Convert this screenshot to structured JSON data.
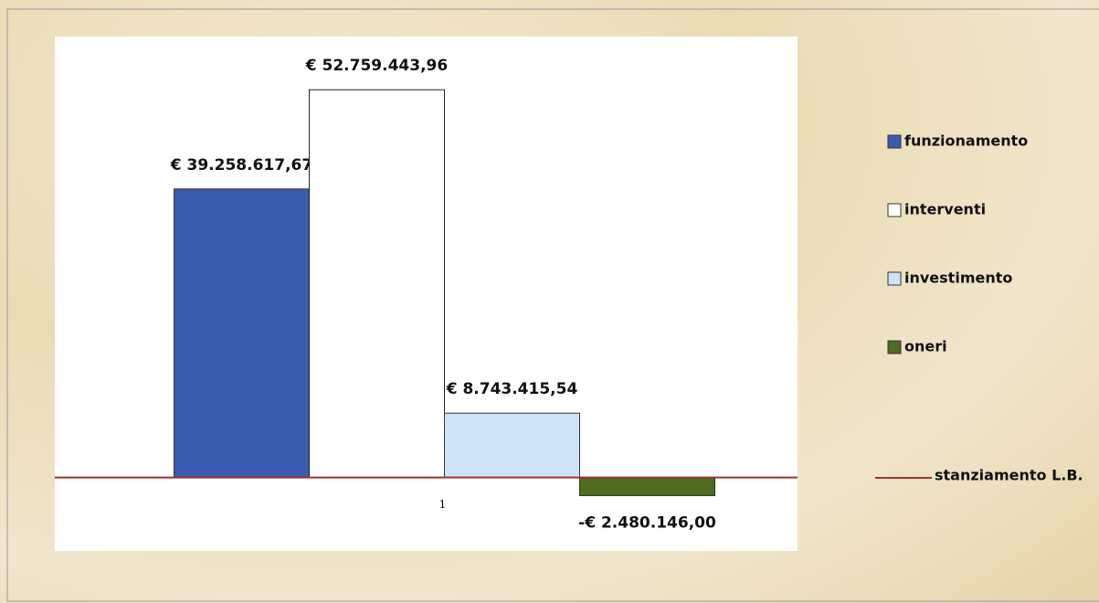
{
  "chart_data": {
    "type": "bar",
    "categories": [
      "1"
    ],
    "series": [
      {
        "name": "funzionamento",
        "color": "#3a5bb0",
        "values": [
          39258617.67
        ],
        "value_labels": [
          "€ 39.258.617,67"
        ]
      },
      {
        "name": "interventi",
        "color": "#ffffff",
        "values": [
          52759443.96
        ],
        "value_labels": [
          "€ 52.759.443,96"
        ]
      },
      {
        "name": "investimento",
        "color": "#cfe3f7",
        "values": [
          8743415.54
        ],
        "value_labels": [
          "€ 8.743.415,54"
        ]
      },
      {
        "name": "oneri",
        "color": "#4e6b1f",
        "values": [
          -2480146.0
        ],
        "value_labels": [
          "-€ 2.480.146,00"
        ]
      },
      {
        "name": "stanziamento L.B.",
        "color": "#a0302a",
        "type": "line",
        "values": [
          0
        ]
      }
    ],
    "ylim": [
      -10000000,
      60000000
    ],
    "legend": "right"
  }
}
